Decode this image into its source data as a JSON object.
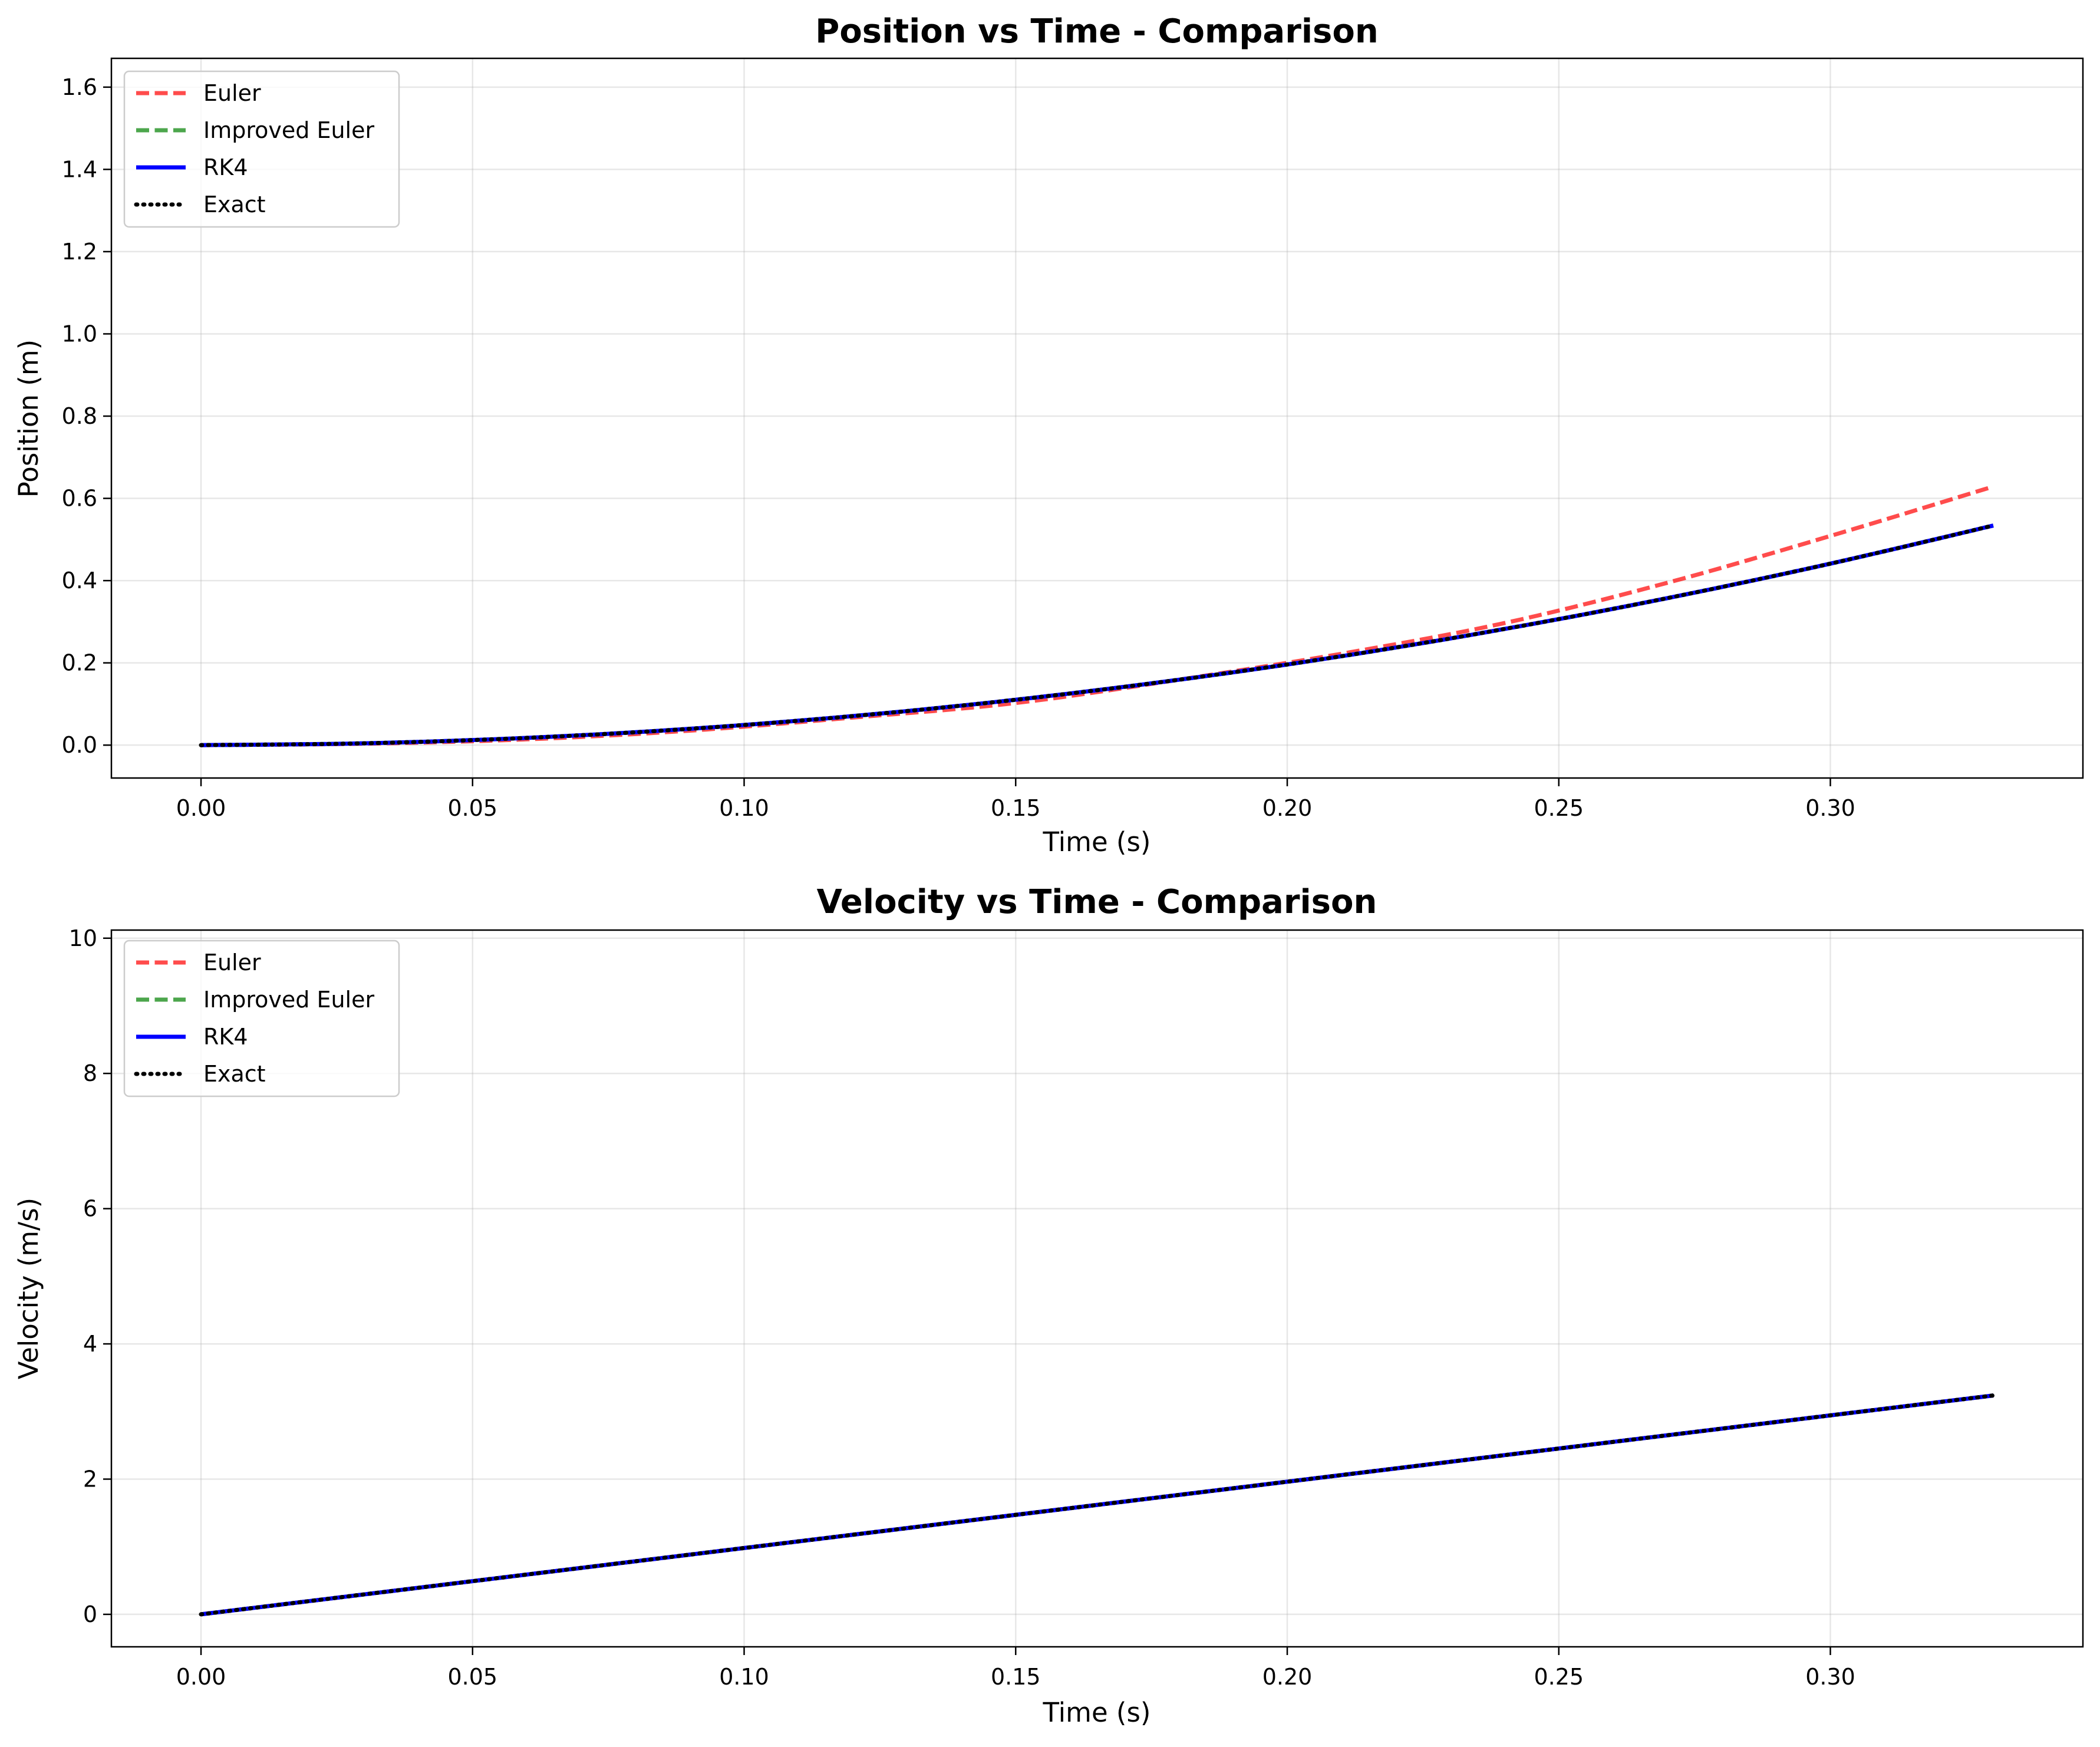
{
  "colors": {
    "euler": "#ff0000",
    "improved_euler": "#008000",
    "rk4": "#0000ff",
    "exact": "#000000",
    "grid": "#b0b0b0"
  },
  "chart_data": [
    {
      "type": "line",
      "title": "Position vs Time - Comparison",
      "xlabel": "Time (s)",
      "ylabel": "Position (m)",
      "xlim": [
        -0.0165,
        0.3465
      ],
      "ylim": [
        -0.08,
        1.67
      ],
      "xticks": [
        0.0,
        0.05,
        0.1,
        0.15,
        0.2,
        0.25,
        0.3
      ],
      "xtick_labels": [
        "0.00",
        "0.05",
        "0.10",
        "0.15",
        "0.20",
        "0.25",
        "0.30"
      ],
      "yticks": [
        0.0,
        0.2,
        0.4,
        0.6,
        0.8,
        1.0,
        1.2,
        1.4,
        1.6
      ],
      "ytick_labels": [
        "0.0",
        "0.2",
        "0.4",
        "0.6",
        "0.8",
        "1.0",
        "1.2",
        "1.4",
        "1.6"
      ],
      "grid": true,
      "legend_position": "upper-left",
      "x": [
        0.0,
        0.03,
        0.06,
        0.09,
        0.12,
        0.15,
        0.18,
        0.21,
        0.24,
        0.27,
        0.3,
        0.33
      ],
      "series": [
        {
          "name": "Euler",
          "style": "dashed",
          "values": [
            0.0,
            0.0035,
            0.0141,
            0.0353,
            0.067,
            0.1024,
            0.159,
            0.2222,
            0.2968,
            0.3948,
            0.5086,
            0.6288
          ]
        },
        {
          "name": "Improved Euler",
          "style": "dashed",
          "values": [
            0.0,
            0.0044,
            0.0176,
            0.0397,
            0.0706,
            0.1103,
            0.1589,
            0.2162,
            0.2824,
            0.3574,
            0.4413,
            0.5339
          ]
        },
        {
          "name": "RK4",
          "style": "solid",
          "values": [
            0.0,
            0.0044,
            0.0176,
            0.0397,
            0.0706,
            0.1103,
            0.1589,
            0.2162,
            0.2824,
            0.3574,
            0.4413,
            0.5339
          ]
        },
        {
          "name": "Exact",
          "style": "dotted",
          "values": [
            0.0,
            0.0044,
            0.0176,
            0.0397,
            0.0706,
            0.1103,
            0.1589,
            0.2162,
            0.2824,
            0.3574,
            0.4413,
            0.5339
          ]
        }
      ]
    },
    {
      "type": "line",
      "title": "Velocity vs Time - Comparison",
      "xlabel": "Time (s)",
      "ylabel": "Velocity (m/s)",
      "xlim": [
        -0.0165,
        0.3465
      ],
      "ylim": [
        -0.48,
        10.12
      ],
      "xticks": [
        0.0,
        0.05,
        0.1,
        0.15,
        0.2,
        0.25,
        0.3
      ],
      "xtick_labels": [
        "0.00",
        "0.05",
        "0.10",
        "0.15",
        "0.20",
        "0.25",
        "0.30"
      ],
      "yticks": [
        0,
        2,
        4,
        6,
        8,
        10
      ],
      "ytick_labels": [
        "0",
        "2",
        "4",
        "6",
        "8",
        "10"
      ],
      "grid": true,
      "legend_position": "upper-left",
      "x": [
        0.0,
        0.33
      ],
      "series": [
        {
          "name": "Euler",
          "style": "dashed",
          "values": [
            0.0,
            3.2373
          ]
        },
        {
          "name": "Improved Euler",
          "style": "dashed",
          "values": [
            0.0,
            3.2373
          ]
        },
        {
          "name": "RK4",
          "style": "solid",
          "values": [
            0.0,
            3.2373
          ]
        },
        {
          "name": "Exact",
          "style": "dotted",
          "values": [
            0.0,
            3.2373
          ]
        }
      ]
    }
  ]
}
